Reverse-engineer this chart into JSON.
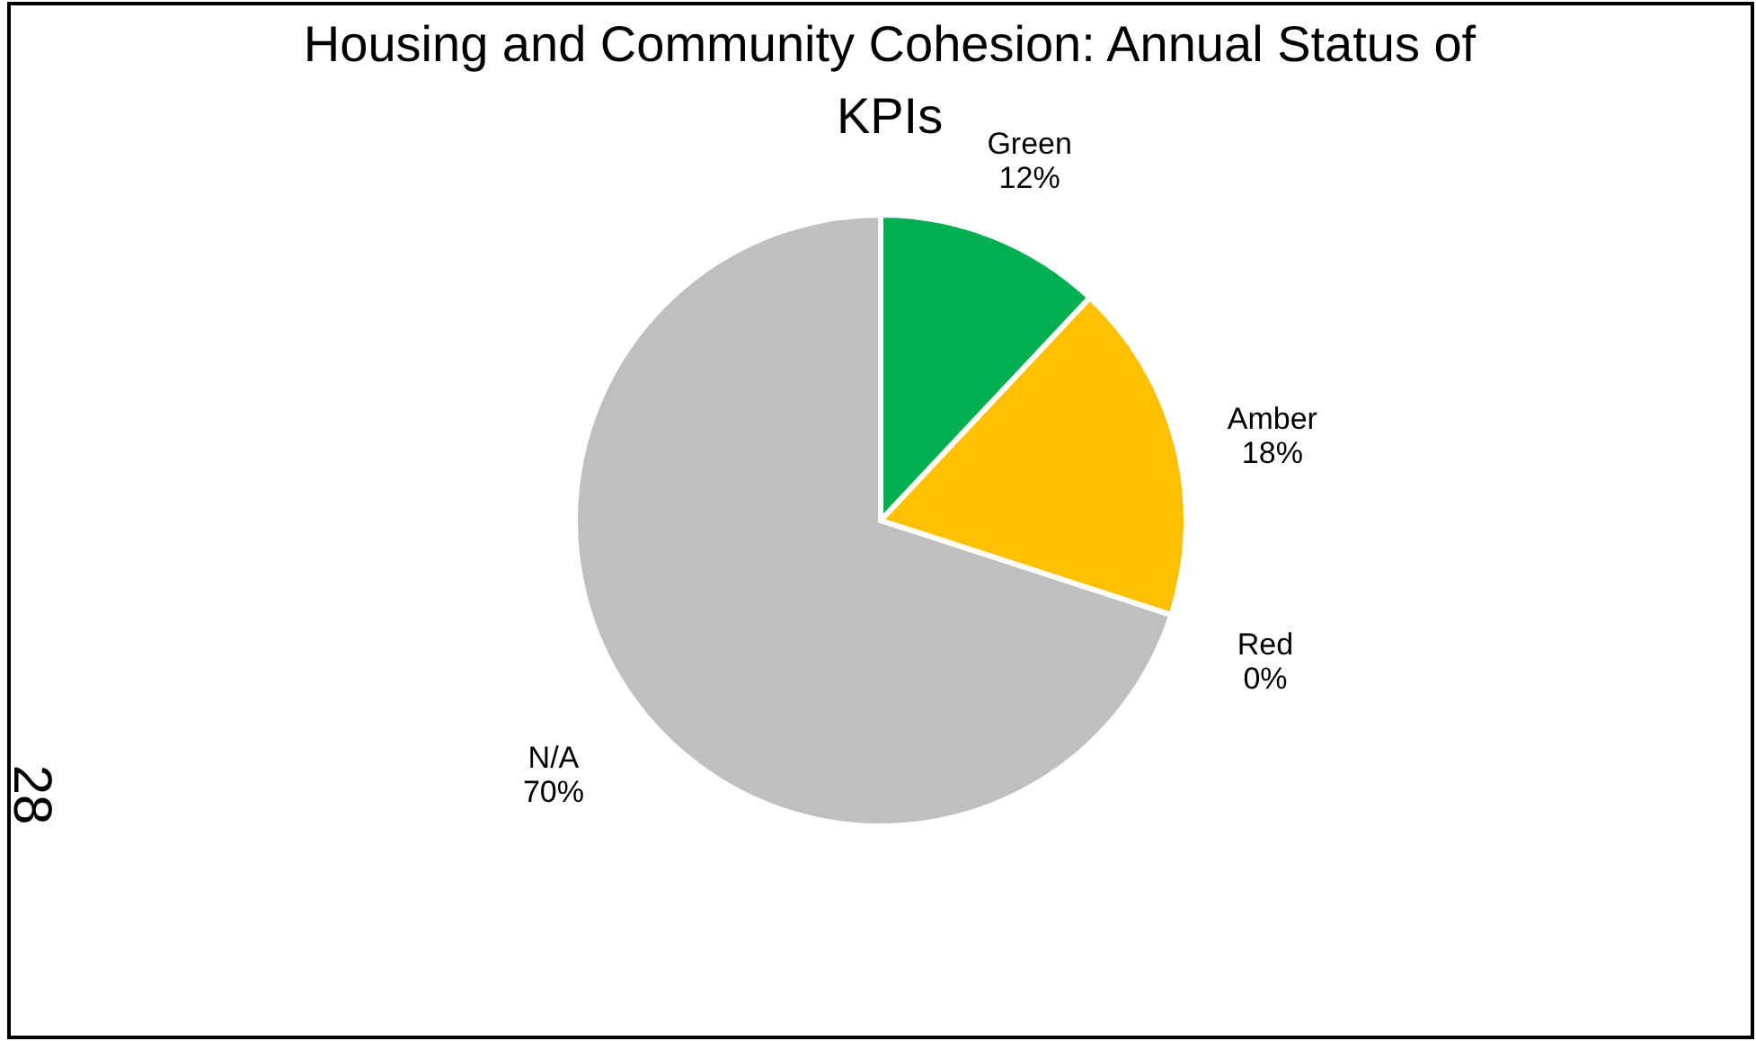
{
  "chart_data": {
    "type": "pie",
    "title": "Housing and Community Cohesion: Annual Status of KPIs",
    "categories": [
      "Green",
      "Amber",
      "Red",
      "N/A"
    ],
    "values": [
      12,
      18,
      0,
      70
    ],
    "value_labels": [
      "12%",
      "18%",
      "0%",
      "70%"
    ],
    "colors": [
      "#00b050",
      "#ffc000",
      "#ff0000",
      "#bfbfbf"
    ],
    "legend": false,
    "annotations": [
      "28"
    ]
  }
}
